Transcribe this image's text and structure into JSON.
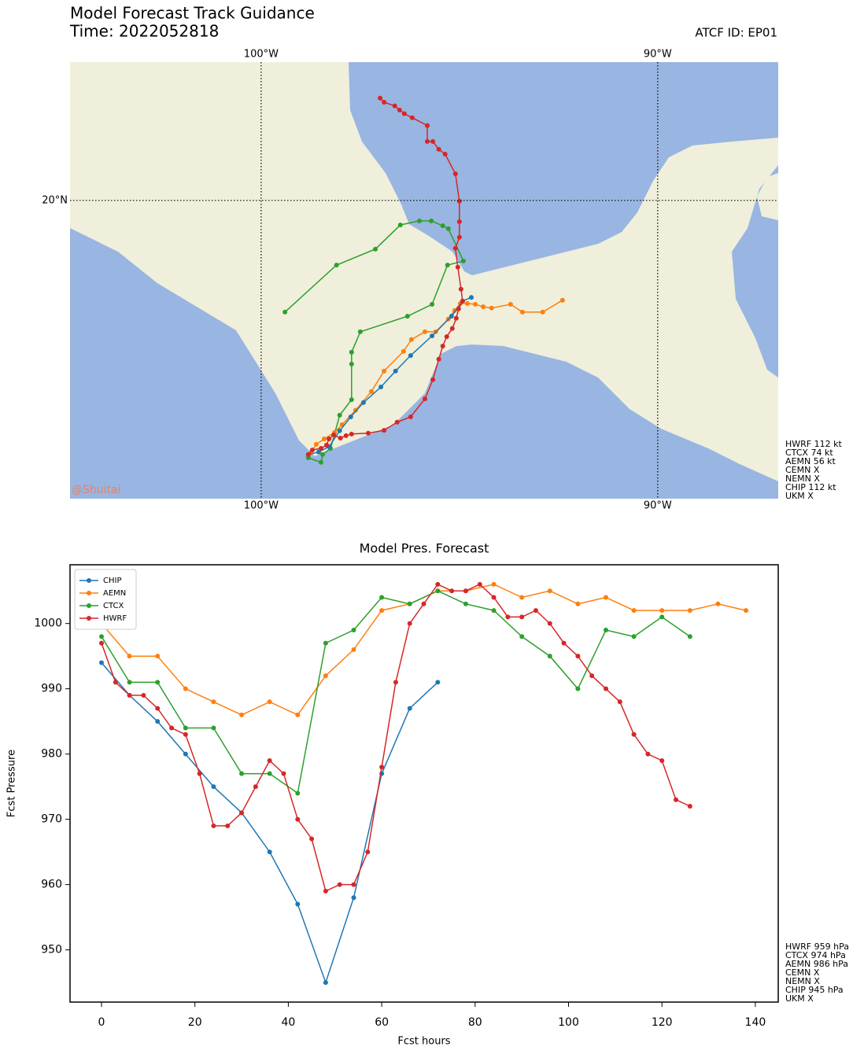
{
  "chart_data": [
    {
      "type": "map",
      "title": "Model Forecast Track Guidance",
      "subtitle": "Time: 2022052818",
      "atcf_id": "ATCF ID: EP01",
      "watermark": "@Shuitai",
      "xlim": [
        -104.82,
        -86.96
      ],
      "ylim": [
        12.71,
        23.38
      ],
      "xticks": [
        {
          "value": -100,
          "label": "100°W"
        },
        {
          "value": -90,
          "label": "90°W"
        }
      ],
      "yticks": [
        {
          "value": 20,
          "label": "20°N"
        }
      ],
      "grid": true,
      "side_labels": [
        {
          "text": "HWRF 112 kt",
          "color": "#e8a200"
        },
        {
          "text": "CTCX 74 kt",
          "color": "#e8a200"
        },
        {
          "text": "AEMN 56 kt",
          "color": "#1f77b4"
        },
        {
          "text": "CEMN X",
          "color": "#aaaaaa"
        },
        {
          "text": "NEMN X",
          "color": "#aaaaaa"
        },
        {
          "text": "CHIP 112 kt",
          "color": "#e8a200"
        },
        {
          "text": "UKM X",
          "color": "#aaaaaa"
        }
      ],
      "series": [
        {
          "color": "#2ca02c",
          "lon": [
            -98.81,
            -98.49,
            -98.45,
            -98.25,
            -98.02,
            -97.72,
            -97.72,
            -97.72,
            -97.5,
            -96.31,
            -95.69,
            -95.3,
            -94.9,
            -95.28,
            -95.42,
            -95.71,
            -96.01,
            -96.49,
            -97.12,
            -98.1,
            -99.4
          ],
          "lat": [
            13.71,
            13.6,
            13.79,
            13.94,
            14.75,
            15.13,
            16.0,
            16.29,
            16.79,
            17.17,
            17.46,
            18.42,
            18.52,
            19.31,
            19.38,
            19.5,
            19.5,
            19.4,
            18.81,
            18.42,
            17.27
          ]
        },
        {
          "color": "#ff7f0e",
          "lon": [
            -98.75,
            -98.61,
            -98.41,
            -98.15,
            -97.96,
            -97.62,
            -97.22,
            -96.9,
            -96.41,
            -96.21,
            -95.87,
            -95.6,
            -95.28,
            -95.12,
            -94.98,
            -94.8,
            -94.6,
            -94.4,
            -94.19,
            -93.71,
            -93.41,
            -92.9,
            -92.4
          ],
          "lat": [
            13.83,
            14.04,
            14.17,
            14.33,
            14.52,
            14.87,
            15.33,
            15.83,
            16.31,
            16.6,
            16.79,
            16.79,
            17.1,
            17.31,
            17.48,
            17.48,
            17.46,
            17.4,
            17.37,
            17.46,
            17.27,
            17.27,
            17.56
          ]
        },
        {
          "color": "#1f77b4",
          "lon": [
            -98.81,
            -98.55,
            -98.29,
            -98.02,
            -97.74,
            -97.42,
            -96.98,
            -96.61,
            -96.23,
            -95.69,
            -95.2,
            -94.92,
            -94.7
          ],
          "lat": [
            13.79,
            13.85,
            13.98,
            14.37,
            14.71,
            15.06,
            15.44,
            15.83,
            16.21,
            16.69,
            17.17,
            17.54,
            17.63
          ]
        },
        {
          "color": "#d62728",
          "lon": [
            -98.81,
            -98.71,
            -98.49,
            -98.35,
            -98.29,
            -98.17,
            -98.0,
            -97.86,
            -97.72,
            -97.3,
            -96.9,
            -96.57,
            -96.23,
            -95.87,
            -95.67,
            -95.52,
            -95.42,
            -95.32,
            -95.18,
            -95.08,
            -95.02,
            -94.92,
            -94.96,
            -95.04,
            -95.1,
            -95.0,
            -95.0,
            -95.0,
            -95.1,
            -95.36,
            -95.52,
            -95.67,
            -95.81,
            -95.81,
            -96.19,
            -96.39,
            -96.51,
            -96.63,
            -96.9,
            -97.0
          ],
          "lat": [
            13.79,
            13.9,
            13.94,
            14.02,
            14.17,
            14.27,
            14.19,
            14.25,
            14.29,
            14.31,
            14.38,
            14.58,
            14.71,
            15.15,
            15.62,
            16.12,
            16.44,
            16.67,
            16.87,
            17.12,
            17.35,
            17.54,
            17.83,
            18.37,
            18.83,
            19.1,
            19.48,
            19.98,
            20.65,
            21.13,
            21.25,
            21.44,
            21.44,
            21.83,
            22.02,
            22.12,
            22.21,
            22.31,
            22.4,
            22.5
          ]
        }
      ]
    },
    {
      "type": "line",
      "title": "Model Pres. Forecast",
      "xlabel": "Fcst hours",
      "ylabel": "Fcst Pressure",
      "xlim": [
        -6.74,
        144.9
      ],
      "ylim": [
        942.0,
        1009.0
      ],
      "xticks": [
        0,
        20,
        40,
        60,
        80,
        100,
        120,
        140
      ],
      "yticks": [
        950,
        960,
        970,
        980,
        990,
        1000
      ],
      "legend": "upper left",
      "side_labels": [
        {
          "text": "HWRF 959 hPa",
          "color": "#e0209a"
        },
        {
          "text": "CTCX 974 hPa",
          "color": "#e8a200"
        },
        {
          "text": "AEMN 986 hPa",
          "color": "#e8a200"
        },
        {
          "text": "CEMN X",
          "color": "#aaaaaa"
        },
        {
          "text": "NEMN X",
          "color": "#aaaaaa"
        },
        {
          "text": "CHIP 945 hPa",
          "color": "#8b0000"
        },
        {
          "text": "UKM X",
          "color": "#aaaaaa"
        }
      ],
      "series": [
        {
          "name": "CHIP",
          "color": "#1f77b4",
          "x": [
            0,
            6,
            12,
            18,
            24,
            30,
            36,
            42,
            48,
            54,
            60,
            66,
            72
          ],
          "values": [
            994,
            989,
            985,
            980,
            975,
            971,
            965,
            957,
            945,
            958,
            977,
            987,
            991
          ]
        },
        {
          "name": "AEMN",
          "color": "#ff7f0e",
          "x": [
            0,
            6,
            12,
            18,
            24,
            30,
            36,
            42,
            48,
            54,
            60,
            66,
            72,
            78,
            84,
            90,
            96,
            102,
            108,
            114,
            120,
            126,
            132,
            138
          ],
          "values": [
            1000,
            995,
            995,
            990,
            988,
            986,
            988,
            986,
            992,
            996,
            1002,
            1003,
            1005,
            1005,
            1006,
            1004,
            1005,
            1003,
            1004,
            1002,
            1002,
            1002,
            1003,
            1002
          ]
        },
        {
          "name": "CTCX",
          "color": "#2ca02c",
          "x": [
            0,
            6,
            12,
            18,
            24,
            30,
            36,
            42,
            48,
            54,
            60,
            66,
            72,
            78,
            84,
            90,
            96,
            102,
            108,
            114,
            120,
            126
          ],
          "values": [
            998,
            991,
            991,
            984,
            984,
            977,
            977,
            974,
            997,
            999,
            1004,
            1003,
            1005,
            1003,
            1002,
            998,
            995,
            990,
            999,
            998,
            1001,
            998
          ]
        },
        {
          "name": "HWRF",
          "color": "#d62728",
          "x": [
            0,
            3,
            6,
            9,
            12,
            15,
            18,
            21,
            24,
            27,
            30,
            33,
            36,
            39,
            42,
            45,
            48,
            51,
            54,
            57,
            60,
            63,
            66,
            69,
            72,
            75,
            78,
            81,
            84,
            87,
            90,
            93,
            96,
            99,
            102,
            105,
            108,
            111,
            114,
            117,
            120,
            123,
            126
          ],
          "values": [
            997,
            991,
            989,
            989,
            987,
            984,
            983,
            977,
            969,
            969,
            971,
            975,
            979,
            977,
            970,
            967,
            959,
            960,
            960,
            965,
            978,
            991,
            1000,
            1003,
            1006,
            1005,
            1005,
            1006,
            1004,
            1001,
            1001,
            1002,
            1000,
            997,
            995,
            992,
            990,
            988,
            983,
            980,
            979,
            973,
            972
          ]
        }
      ]
    }
  ]
}
